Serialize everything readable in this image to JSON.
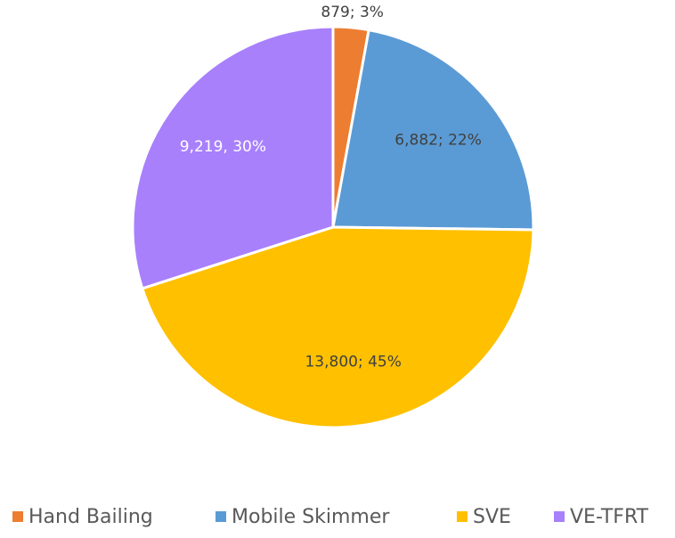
{
  "chart_data": {
    "type": "pie",
    "categories": [
      "Hand Bailing",
      "Mobile Skimmer",
      "SVE",
      "VE-TFRT"
    ],
    "values": [
      879,
      6882,
      13800,
      9219
    ],
    "value_labels": [
      "879; 3%",
      "6,882; 22%",
      "13,800; 45%",
      "9,219, 30%"
    ],
    "colors": [
      "#ED7D31",
      "#5B9BD5",
      "#FFC000",
      "#A880FC"
    ],
    "legend": "bottom"
  }
}
